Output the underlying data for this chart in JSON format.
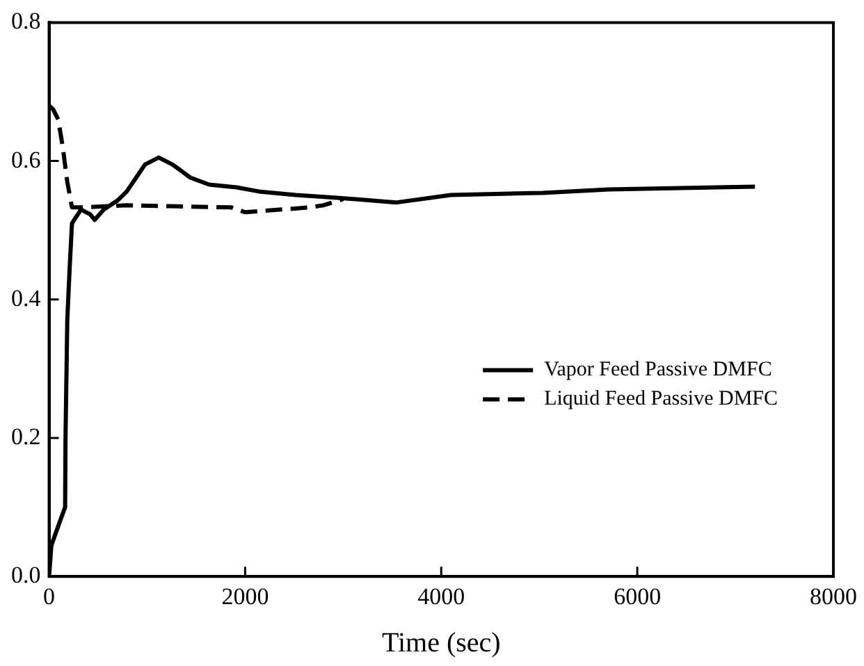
{
  "chart_data": {
    "type": "line",
    "xlabel": "Time (sec)",
    "xlim": [
      0,
      8000
    ],
    "xticks": [
      0,
      2000,
      4000,
      6000,
      8000
    ],
    "ylim": [
      0,
      0.8
    ],
    "yticks": [
      {
        "value": 0,
        "label": "0.0"
      },
      {
        "value": 0.2,
        "label": "0.2"
      },
      {
        "value": 0.4,
        "label": "0.4"
      },
      {
        "value": 0.6,
        "label": "0.6"
      },
      {
        "value": 0.8,
        "label": "0.8"
      }
    ],
    "grid": false,
    "legend": "right",
    "marker": "none",
    "series": [
      {
        "name": "Vapor Feed Passive DMFC",
        "color": "#000000",
        "line_style": "solid",
        "x": [
          0,
          24,
          112,
          164,
          168,
          186,
          210,
          234,
          326,
          420,
          466,
          559,
          699,
          793,
          979,
          1119,
          1259,
          1441,
          1632,
          1912,
          2140,
          2517,
          2937,
          3538,
          4098,
          5035,
          5706,
          7200
        ],
        "values": [
          0,
          0.045,
          0.08,
          0.1,
          0.2,
          0.37,
          0.445,
          0.51,
          0.53,
          0.523,
          0.515,
          0.53,
          0.543,
          0.556,
          0.595,
          0.605,
          0.595,
          0.576,
          0.566,
          0.562,
          0.556,
          0.551,
          0.547,
          0.54,
          0.551,
          0.554,
          0.559,
          0.563
        ]
      },
      {
        "name": "Liquid Feed Passive DMFC",
        "color": "#000000",
        "line_style": "dashed",
        "x": [
          0,
          40,
          94,
          140,
          186,
          234,
          326,
          793,
          1860,
          2000,
          2657,
          2797,
          3000
        ],
        "values": [
          0.68,
          0.675,
          0.66,
          0.62,
          0.57,
          0.533,
          0.533,
          0.536,
          0.533,
          0.526,
          0.533,
          0.536,
          0.545
        ]
      }
    ]
  }
}
